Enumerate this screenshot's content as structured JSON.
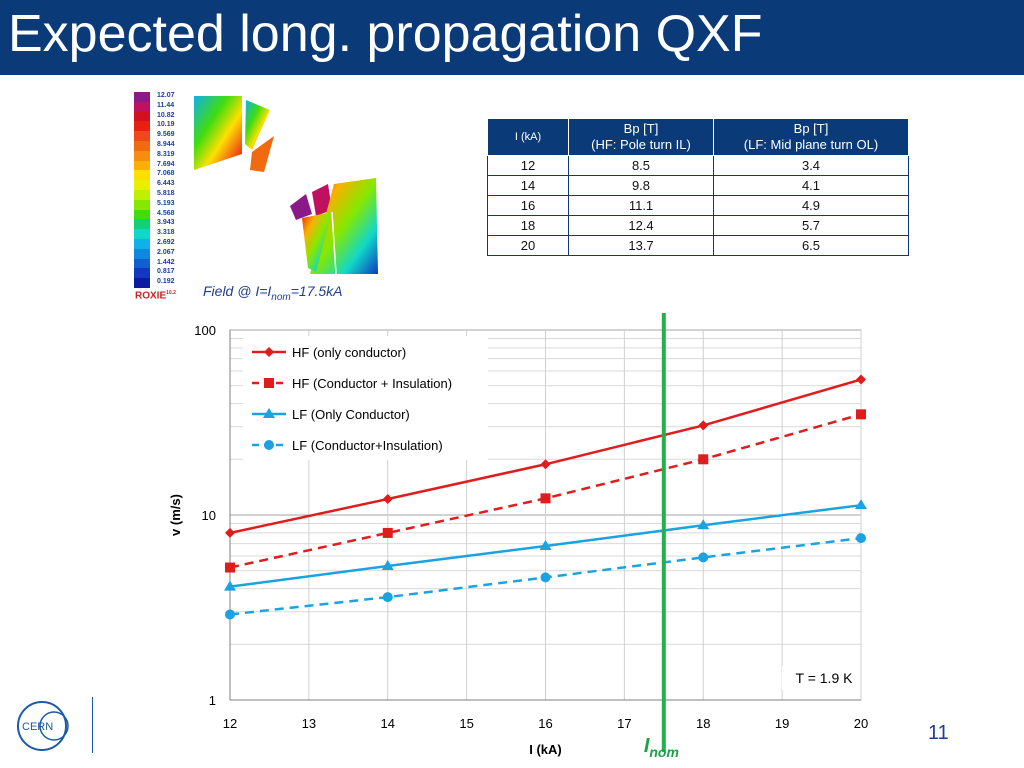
{
  "header": {
    "title": "Expected long. propagation QXF"
  },
  "colorbar": {
    "values": [
      "12.07",
      "11.44",
      "10.82",
      "10.19",
      "9.569",
      "8.944",
      "8.319",
      "7.694",
      "7.068",
      "6.443",
      "5.818",
      "5.193",
      "4.568",
      "3.943",
      "3.318",
      "2.692",
      "2.067",
      "1.442",
      "0.817",
      "0.192"
    ],
    "colors": [
      "#8a1a8a",
      "#c01060",
      "#d41020",
      "#e82010",
      "#f04818",
      "#f26a10",
      "#f68c10",
      "#f9b000",
      "#fde000",
      "#e8f000",
      "#bff000",
      "#86e800",
      "#40dc10",
      "#10d078",
      "#10d8c8",
      "#10b0e8",
      "#1088e0",
      "#1060d0",
      "#1038c0",
      "#0c1aa0"
    ],
    "software": "ROXIE",
    "version": "10.2"
  },
  "caption": {
    "prefix": "Field @ I=I",
    "sub": "nom",
    "suffix": "=17.5kA"
  },
  "table": {
    "headers": [
      {
        "line1": "I (kA)",
        "line2": ""
      },
      {
        "line1": "Bp [T]",
        "line2": "(HF: Pole turn IL)"
      },
      {
        "line1": "Bp [T]",
        "line2": "(LF: Mid plane turn OL)"
      }
    ],
    "rows": [
      [
        "12",
        "8.5",
        "3.4"
      ],
      [
        "14",
        "9.8",
        "4.1"
      ],
      [
        "16",
        "11.1",
        "4.9"
      ],
      [
        "18",
        "12.4",
        "5.7"
      ],
      [
        "20",
        "13.7",
        "6.5"
      ]
    ]
  },
  "chart_data": {
    "type": "line",
    "xlabel": "I (kA)",
    "ylabel": "v (m/s)",
    "xlim": [
      12,
      20
    ],
    "ylim": [
      1,
      100
    ],
    "yscale": "log",
    "x_ticks": [
      12,
      13,
      14,
      15,
      16,
      17,
      18,
      19,
      20
    ],
    "y_ticks": [
      1,
      10,
      100
    ],
    "grid": true,
    "legend_position": "top-left",
    "annotation": "T = 1.9 K",
    "marker_line": {
      "x": 17.5,
      "label": "I",
      "label_sub": "nom",
      "color": "#22b14c"
    },
    "series": [
      {
        "name": "HF (only conductor)",
        "x": [
          12,
          14,
          16,
          18,
          20
        ],
        "values": [
          8.0,
          12.2,
          18.8,
          30.5,
          54.0
        ],
        "color": "#e01c1c",
        "dash": false,
        "marker": "diamond"
      },
      {
        "name": "HF (Conductor + Insulation)",
        "x": [
          12,
          14,
          16,
          18,
          20
        ],
        "values": [
          5.2,
          8.0,
          12.3,
          20.0,
          35.0
        ],
        "color": "#e01c1c",
        "dash": true,
        "marker": "square"
      },
      {
        "name": "LF (Only Conductor)",
        "x": [
          12,
          14,
          16,
          18,
          20
        ],
        "values": [
          4.1,
          5.3,
          6.8,
          8.8,
          11.3
        ],
        "color": "#1aa3e0",
        "dash": false,
        "marker": "triangle"
      },
      {
        "name": "LF (Conductor+Insulation)",
        "x": [
          12,
          14,
          16,
          18,
          20
        ],
        "values": [
          2.9,
          3.6,
          4.6,
          5.9,
          7.5
        ],
        "color": "#1aa3e0",
        "dash": true,
        "marker": "circle"
      }
    ]
  },
  "footer": {
    "logo_text": "CERN",
    "page_number": "11"
  }
}
